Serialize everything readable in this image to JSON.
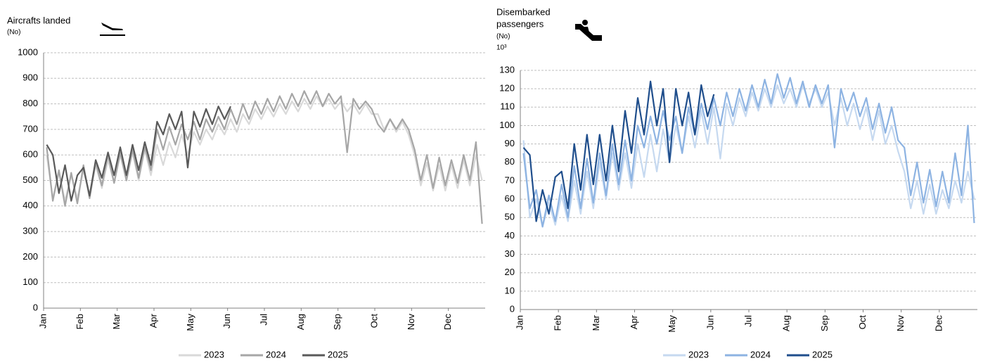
{
  "chart_data": [
    {
      "type": "line",
      "title": "Aircrafts landed",
      "unit": "(No)",
      "categories": [
        "Jan",
        null,
        null,
        null,
        null,
        null,
        "Feb",
        null,
        null,
        null,
        null,
        null,
        "Mar",
        null,
        null,
        null,
        null,
        null,
        "Apr",
        null,
        null,
        null,
        null,
        null,
        "May",
        null,
        null,
        null,
        null,
        null,
        "Jun",
        null,
        null,
        null,
        null,
        null,
        "Jul",
        null,
        null,
        null,
        null,
        null,
        "Aug",
        null,
        null,
        null,
        null,
        null,
        "Sep",
        null,
        null,
        null,
        null,
        null,
        "Oct",
        null,
        null,
        null,
        null,
        null,
        "Nov",
        null,
        null,
        null,
        null,
        null,
        "Dec",
        null,
        null,
        null,
        null,
        null
      ],
      "ylim": [
        0,
        1000
      ],
      "yticks": [
        0,
        100,
        200,
        300,
        400,
        500,
        600,
        700,
        800,
        900,
        1000
      ],
      "grid": true,
      "series": [
        {
          "name": "2023",
          "color": "#d9d9d9",
          "values": [
            600,
            430,
            530,
            420,
            520,
            430,
            540,
            440,
            560,
            470,
            580,
            490,
            600,
            500,
            610,
            500,
            620,
            520,
            640,
            560,
            650,
            590,
            680,
            600,
            690,
            640,
            700,
            660,
            720,
            680,
            740,
            690,
            760,
            720,
            780,
            740,
            790,
            750,
            800,
            760,
            810,
            770,
            820,
            780,
            830,
            790,
            820,
            780,
            810,
            770,
            800,
            760,
            800,
            760,
            760,
            700,
            740,
            690,
            730,
            680,
            600,
            480,
            570,
            460,
            560,
            460,
            560,
            470,
            580,
            480,
            600,
            500
          ]
        },
        {
          "name": "2024",
          "color": "#a6a6a6",
          "values": [
            630,
            420,
            540,
            400,
            530,
            410,
            560,
            430,
            570,
            480,
            600,
            490,
            610,
            500,
            620,
            510,
            630,
            540,
            700,
            620,
            710,
            640,
            720,
            660,
            730,
            660,
            740,
            690,
            750,
            700,
            780,
            720,
            800,
            740,
            810,
            760,
            820,
            770,
            830,
            780,
            840,
            790,
            850,
            800,
            850,
            790,
            840,
            800,
            830,
            610,
            820,
            780,
            810,
            780,
            720,
            690,
            740,
            700,
            740,
            700,
            620,
            500,
            600,
            470,
            590,
            480,
            580,
            490,
            600,
            500,
            650,
            330
          ]
        },
        {
          "name": "2025",
          "color": "#595959",
          "values": [
            640,
            600,
            450,
            560,
            420,
            520,
            550,
            440,
            580,
            510,
            610,
            520,
            630,
            520,
            640,
            540,
            650,
            560,
            730,
            680,
            760,
            700,
            770,
            550,
            770,
            710,
            780,
            720,
            790,
            740,
            790,
            null,
            null,
            null,
            null,
            null,
            null,
            null,
            null,
            null,
            null,
            null,
            null,
            null,
            null,
            null,
            null,
            null,
            null,
            null,
            null,
            null,
            null,
            null,
            null,
            null,
            null,
            null,
            null,
            null,
            null,
            null,
            null,
            null,
            null,
            null,
            null,
            null,
            null,
            null,
            null,
            null
          ]
        }
      ]
    },
    {
      "type": "line",
      "title_lines": [
        "Disembarked",
        "passengers"
      ],
      "unit": "(No)",
      "multiplier": "10³",
      "categories": [
        "Jan",
        null,
        null,
        null,
        null,
        null,
        "Feb",
        null,
        null,
        null,
        null,
        null,
        "Mar",
        null,
        null,
        null,
        null,
        null,
        "Apr",
        null,
        null,
        null,
        null,
        null,
        "May",
        null,
        null,
        null,
        null,
        null,
        "Jun",
        null,
        null,
        null,
        null,
        null,
        "Jul",
        null,
        null,
        null,
        null,
        null,
        "Aug",
        null,
        null,
        null,
        null,
        null,
        "Sep",
        null,
        null,
        null,
        null,
        null,
        "Oct",
        null,
        null,
        null,
        null,
        null,
        "Nov",
        null,
        null,
        null,
        null,
        null,
        "Dec",
        null,
        null,
        null,
        null,
        null
      ],
      "ylim": [
        0,
        130
      ],
      "yticks": [
        0,
        10,
        20,
        30,
        40,
        50,
        60,
        70,
        80,
        90,
        100,
        110,
        120,
        130
      ],
      "grid": true,
      "series": [
        {
          "name": "2023",
          "color": "#c6d9f0",
          "values": [
            92,
            50,
            60,
            45,
            58,
            46,
            62,
            48,
            70,
            52,
            75,
            55,
            80,
            60,
            85,
            65,
            85,
            66,
            90,
            72,
            95,
            75,
            98,
            80,
            100,
            85,
            105,
            88,
            108,
            90,
            110,
            82,
            112,
            100,
            115,
            105,
            118,
            108,
            120,
            110,
            122,
            112,
            120,
            110,
            122,
            112,
            120,
            110,
            118,
            100,
            115,
            100,
            112,
            98,
            110,
            92,
            108,
            90,
            100,
            86,
            75,
            55,
            70,
            52,
            68,
            52,
            65,
            55,
            70,
            58,
            75,
            60
          ]
        },
        {
          "name": "2024",
          "color": "#8db3e2",
          "values": [
            85,
            55,
            65,
            45,
            62,
            48,
            68,
            50,
            78,
            55,
            82,
            58,
            85,
            62,
            90,
            68,
            92,
            70,
            100,
            88,
            105,
            90,
            108,
            92,
            105,
            85,
            110,
            95,
            112,
            98,
            115,
            100,
            118,
            105,
            120,
            108,
            122,
            110,
            125,
            112,
            128,
            115,
            126,
            112,
            124,
            110,
            122,
            112,
            122,
            88,
            120,
            108,
            118,
            105,
            115,
            98,
            112,
            96,
            110,
            92,
            88,
            62,
            80,
            58,
            76,
            56,
            75,
            58,
            85,
            62,
            100,
            47
          ]
        },
        {
          "name": "2025",
          "color": "#1f4e8c",
          "values": [
            88,
            84,
            48,
            65,
            52,
            72,
            75,
            55,
            90,
            65,
            95,
            68,
            95,
            70,
            100,
            75,
            108,
            85,
            115,
            95,
            124,
            100,
            120,
            80,
            120,
            100,
            118,
            95,
            122,
            105,
            117,
            null,
            null,
            null,
            null,
            null,
            null,
            null,
            null,
            null,
            null,
            null,
            null,
            null,
            null,
            null,
            null,
            null,
            null,
            null,
            null,
            null,
            null,
            null,
            null,
            null,
            null,
            null,
            null,
            null,
            null,
            null,
            null,
            null,
            null,
            null,
            null,
            null,
            null,
            null,
            null,
            null
          ]
        }
      ]
    }
  ]
}
